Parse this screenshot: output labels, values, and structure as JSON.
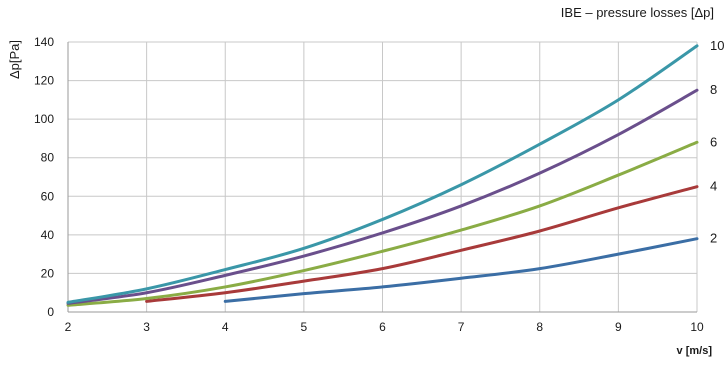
{
  "chart_data": {
    "type": "line",
    "title": "IBE – pressure losses [Δp]",
    "xlabel": "v [m/s]",
    "ylabel": "Δp[Pa]",
    "xlim": [
      2,
      10
    ],
    "ylim": [
      0,
      140
    ],
    "x_ticks": [
      "2",
      "3",
      "4",
      "5",
      "6",
      "7",
      "8",
      "9",
      "10"
    ],
    "y_ticks": [
      "0",
      "20",
      "40",
      "60",
      "80",
      "100",
      "120",
      "140"
    ],
    "grid": true,
    "legend": "right-end labels",
    "series": [
      {
        "name": "2",
        "color": "#3b6ea5",
        "x": [
          4,
          5,
          6,
          7,
          8,
          9,
          10
        ],
        "y": [
          5.5,
          9.5,
          13,
          17.5,
          22.5,
          30,
          38
        ]
      },
      {
        "name": "4",
        "color": "#a83a3a",
        "x": [
          3,
          4,
          5,
          6,
          7,
          8,
          9,
          10
        ],
        "y": [
          5.5,
          10,
          16,
          22.5,
          32,
          42,
          54,
          65
        ]
      },
      {
        "name": "6",
        "color": "#8aac45",
        "x": [
          2,
          3,
          4,
          5,
          6,
          7,
          8,
          9,
          10
        ],
        "y": [
          3.5,
          7,
          13,
          21.5,
          31.5,
          42.5,
          55,
          71,
          88
        ]
      },
      {
        "name": "8",
        "color": "#6a4f8c",
        "x": [
          2,
          3,
          4,
          5,
          6,
          7,
          8,
          9,
          10
        ],
        "y": [
          4.5,
          10,
          19,
          29,
          41,
          55,
          72,
          92,
          115
        ]
      },
      {
        "name": "10",
        "color": "#3a97a8",
        "x": [
          2,
          3,
          4,
          5,
          6,
          7,
          8,
          9,
          10
        ],
        "y": [
          5,
          12,
          22,
          33,
          48,
          66,
          87,
          110,
          138
        ]
      }
    ]
  }
}
